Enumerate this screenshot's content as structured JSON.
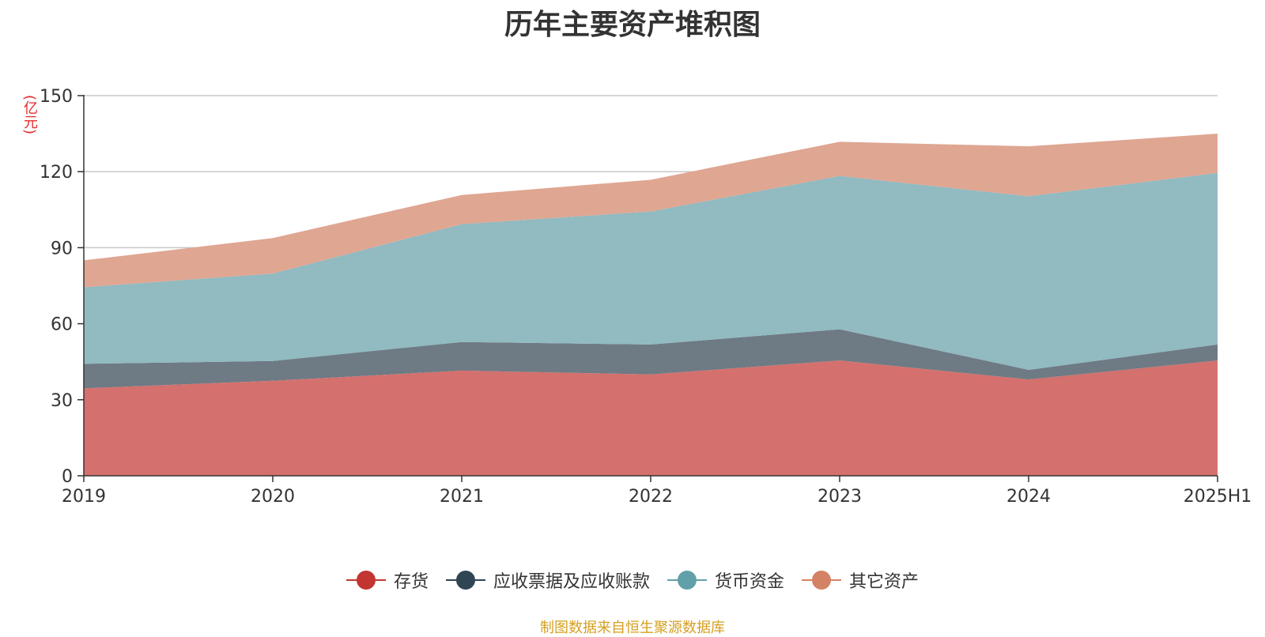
{
  "title": "历年主要资产堆积图",
  "unit": "(亿元)",
  "source": "制图数据来自恒生聚源数据库",
  "chart_data": {
    "type": "area",
    "stacked": true,
    "title": "历年主要资产堆积图",
    "ylabel": "(亿元)",
    "categories": [
      "2019",
      "2020",
      "2021",
      "2022",
      "2023",
      "2024",
      "2025H1"
    ],
    "ylim": [
      0,
      150
    ],
    "yticks": [
      0,
      30,
      60,
      90,
      120,
      150
    ],
    "grid": true,
    "legend_position": "bottom",
    "series": [
      {
        "name": "存货",
        "color": "#c23531",
        "fill": "#d4706d",
        "values": [
          34.5,
          37.5,
          41.5,
          40.0,
          45.5,
          38.0,
          45.5
        ]
      },
      {
        "name": "应收票据及应收账款",
        "color": "#2f4554",
        "fill": "#6e7a84",
        "values": [
          9.7,
          7.8,
          11.3,
          11.8,
          12.3,
          3.8,
          6.3
        ]
      },
      {
        "name": "货币资金",
        "color": "#61a0a8",
        "fill": "#91bac1",
        "values": [
          30.2,
          34.5,
          46.5,
          52.5,
          60.5,
          68.5,
          67.7
        ]
      },
      {
        "name": "其它资产",
        "color": "#d48265",
        "fill": "#dfa692",
        "values": [
          10.6,
          14.0,
          11.5,
          12.5,
          13.5,
          19.7,
          15.5
        ]
      }
    ]
  }
}
